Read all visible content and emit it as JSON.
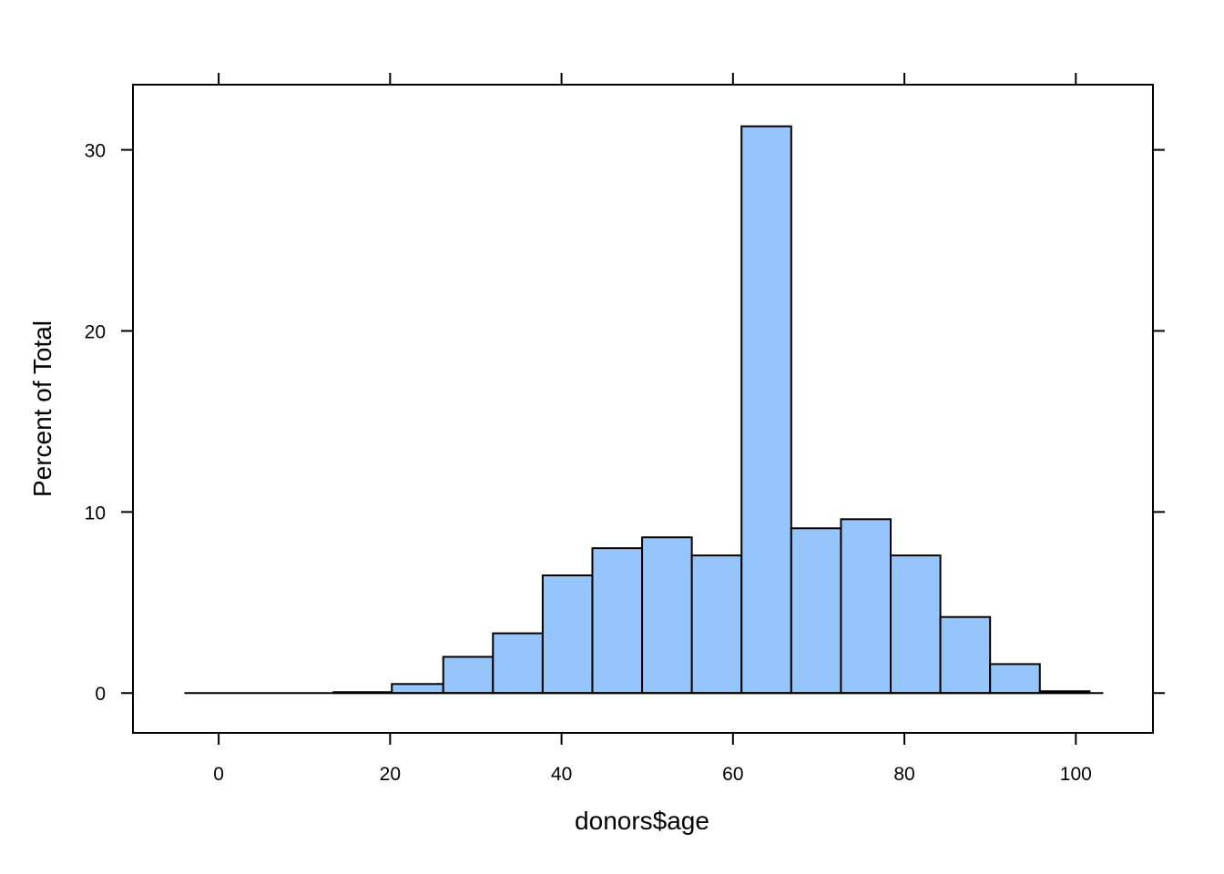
{
  "chart_data": {
    "type": "bar",
    "xlabel": "donors$age",
    "ylabel": "Percent of Total",
    "xlim": [
      -10,
      109
    ],
    "ylim": [
      -2.2,
      33.6
    ],
    "grid": false,
    "x_ticks": [
      0,
      20,
      40,
      60,
      80,
      100
    ],
    "y_ticks": [
      0,
      10,
      20,
      30
    ],
    "bin_width": 5.8,
    "bins": [
      {
        "start": -4.0,
        "end": 1.8,
        "value": 0.0
      },
      {
        "start": 1.8,
        "end": 7.6,
        "value": 0.0
      },
      {
        "start": 7.6,
        "end": 13.4,
        "value": 0.0
      },
      {
        "start": 13.4,
        "end": 20.2,
        "value": 0.05
      },
      {
        "start": 20.2,
        "end": 26.2,
        "value": 0.5
      },
      {
        "start": 26.2,
        "end": 32.0,
        "value": 2.0
      },
      {
        "start": 32.0,
        "end": 37.8,
        "value": 3.3
      },
      {
        "start": 37.8,
        "end": 43.6,
        "value": 6.5
      },
      {
        "start": 43.6,
        "end": 49.4,
        "value": 8.0
      },
      {
        "start": 49.4,
        "end": 55.2,
        "value": 8.6
      },
      {
        "start": 55.2,
        "end": 61.0,
        "value": 7.6
      },
      {
        "start": 61.0,
        "end": 66.8,
        "value": 31.3
      },
      {
        "start": 66.8,
        "end": 72.6,
        "value": 9.1
      },
      {
        "start": 72.6,
        "end": 78.4,
        "value": 9.6
      },
      {
        "start": 78.4,
        "end": 84.2,
        "value": 7.6
      },
      {
        "start": 84.2,
        "end": 90.0,
        "value": 4.2
      },
      {
        "start": 90.0,
        "end": 95.8,
        "value": 1.6
      },
      {
        "start": 95.8,
        "end": 101.6,
        "value": 0.1
      },
      {
        "start": 101.6,
        "end": 103.2,
        "value": 0.0
      }
    ]
  },
  "colors": {
    "bar_fill": "#95c5fb",
    "stroke": "#000000",
    "background": "#ffffff"
  }
}
